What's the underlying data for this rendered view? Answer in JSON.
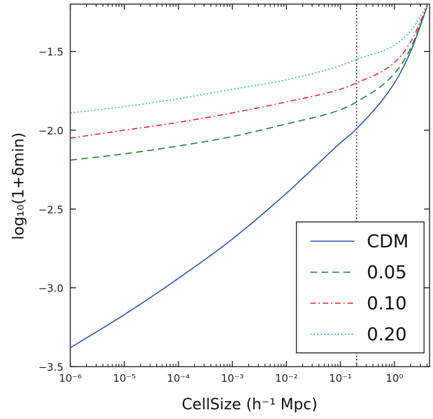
{
  "chart_data": {
    "type": "line",
    "xscale": "log",
    "xlim_exponent": [
      -6,
      0.65
    ],
    "ylim": [
      -3.5,
      -1.2
    ],
    "xlabel": "CellSize (h⁻¹ Mpc)",
    "ylabel": "log₁₀(1+δmin)",
    "x_tick_labels": [
      "10⁻⁶",
      "10⁻⁵",
      "10⁻⁴",
      "10⁻³",
      "10⁻²",
      "10⁻¹",
      "10⁰"
    ],
    "x_tick_exponents": [
      -6,
      -5,
      -4,
      -3,
      -2,
      -1,
      0
    ],
    "y_tick_labels": [
      "−3.5",
      "−3.0",
      "−2.5",
      "−2.0",
      "−1.5"
    ],
    "y_ticks": [
      -3.5,
      -3.0,
      -2.5,
      -2.0,
      -1.5
    ],
    "vline_x": 0.2,
    "grid": false,
    "legend_position": "bottom-right",
    "series": [
      {
        "name": "CDM",
        "color": "#2c54a4",
        "dash": "solid",
        "log10_x": [
          -6,
          -5,
          -4,
          -3,
          -2,
          -1,
          -0.699,
          0,
          0.3,
          0.6
        ],
        "y": [
          -3.38,
          -3.17,
          -2.94,
          -2.69,
          -2.4,
          -2.08,
          -1.99,
          -1.7,
          -1.5,
          -1.22
        ]
      },
      {
        "name": "0.05",
        "color": "#1e7d3c",
        "dash": "dashed",
        "log10_x": [
          -6,
          -5,
          -4,
          -3,
          -2,
          -1,
          -0.699,
          0,
          0.3,
          0.6
        ],
        "y": [
          -2.19,
          -2.15,
          -2.1,
          -2.04,
          -1.96,
          -1.87,
          -1.82,
          -1.64,
          -1.48,
          -1.22
        ]
      },
      {
        "name": "0.10",
        "color": "#e0242c",
        "dash": "dashdot",
        "log10_x": [
          -6,
          -5,
          -4,
          -3,
          -2,
          -1,
          -0.699,
          0,
          0.3,
          0.6
        ],
        "y": [
          -2.05,
          -2.0,
          -1.95,
          -1.89,
          -1.82,
          -1.74,
          -1.7,
          -1.57,
          -1.44,
          -1.22
        ]
      },
      {
        "name": "0.20",
        "color": "#22b4cc",
        "dash": "dotted",
        "log10_x": [
          -6,
          -5,
          -4,
          -3,
          -2,
          -1,
          -0.699,
          0,
          0.3,
          0.6
        ],
        "y": [
          -1.89,
          -1.85,
          -1.8,
          -1.74,
          -1.68,
          -1.59,
          -1.55,
          -1.46,
          -1.37,
          -1.21
        ]
      }
    ]
  }
}
